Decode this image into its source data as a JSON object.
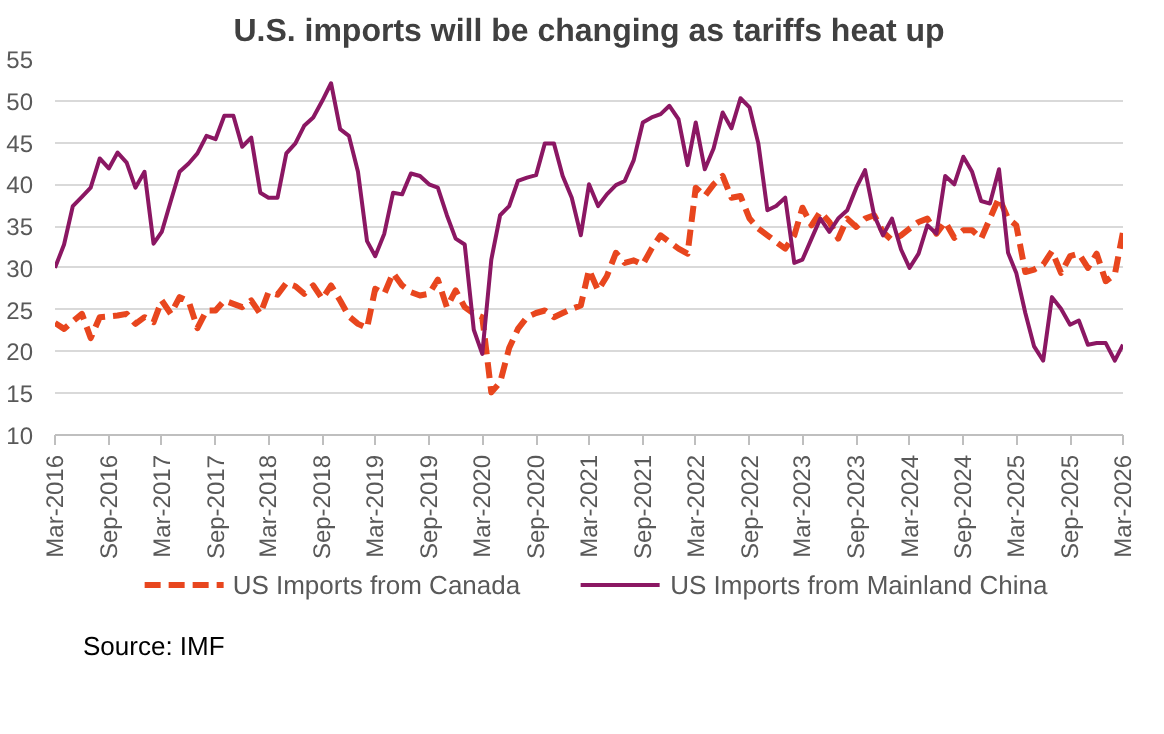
{
  "chart_data": {
    "type": "line",
    "title": "U.S. imports will be changing as tariffs heat up",
    "x": [
      "2016-03",
      "2016-04",
      "2016-05",
      "2016-06",
      "2016-07",
      "2016-08",
      "2016-09",
      "2016-10",
      "2016-11",
      "2016-12",
      "2017-01",
      "2017-02",
      "2017-03",
      "2017-04",
      "2017-05",
      "2017-06",
      "2017-07",
      "2017-08",
      "2017-09",
      "2017-10",
      "2017-11",
      "2017-12",
      "2018-01",
      "2018-02",
      "2018-03",
      "2018-04",
      "2018-05",
      "2018-06",
      "2018-07",
      "2018-08",
      "2018-09",
      "2018-10",
      "2018-11",
      "2018-12",
      "2019-01",
      "2019-02",
      "2019-03",
      "2019-04",
      "2019-05",
      "2019-06",
      "2019-07",
      "2019-08",
      "2019-09",
      "2019-10",
      "2019-11",
      "2019-12",
      "2020-01",
      "2020-02",
      "2020-03",
      "2020-04",
      "2020-05",
      "2020-06",
      "2020-07",
      "2020-08",
      "2020-09",
      "2020-10",
      "2020-11",
      "2020-12",
      "2021-01",
      "2021-02",
      "2021-03",
      "2021-04",
      "2021-05",
      "2021-06",
      "2021-07",
      "2021-08",
      "2021-09",
      "2021-10",
      "2021-11",
      "2021-12",
      "2022-01",
      "2022-02",
      "2022-03",
      "2022-04",
      "2022-05",
      "2022-06",
      "2022-07",
      "2022-08",
      "2022-09",
      "2022-10",
      "2022-11",
      "2022-12",
      "2023-01",
      "2023-02",
      "2023-03",
      "2023-04",
      "2023-05",
      "2023-06",
      "2023-07",
      "2023-08",
      "2023-09",
      "2023-10",
      "2023-11",
      "2023-12",
      "2024-01",
      "2024-02",
      "2024-03",
      "2024-04",
      "2024-05",
      "2024-06",
      "2024-07",
      "2024-08",
      "2024-09",
      "2024-10",
      "2024-11",
      "2024-12",
      "2025-01",
      "2025-02",
      "2025-03",
      "2025-04",
      "2025-05",
      "2025-06",
      "2025-07",
      "2025-08",
      "2025-09",
      "2025-10",
      "2025-11",
      "2025-12",
      "2026-01",
      "2026-02",
      "2026-03"
    ],
    "series": [
      {
        "name": "US Imports from Canada",
        "color": "#e8461e",
        "line_style": "dashed",
        "values": [
          23.4,
          22.7,
          23.6,
          24.5,
          21.6,
          24.1,
          24.2,
          24.3,
          24.5,
          23.3,
          24.1,
          23.5,
          26.1,
          24.5,
          26.5,
          26.0,
          22.8,
          24.9,
          24.9,
          26.1,
          25.7,
          25.3,
          26.1,
          24.5,
          27.1,
          26.8,
          28.2,
          27.8,
          26.9,
          27.9,
          26.3,
          27.9,
          26.1,
          24.2,
          23.3,
          22.8,
          27.5,
          26.9,
          29.4,
          27.9,
          27.1,
          26.7,
          26.9,
          28.6,
          25.3,
          27.3,
          25.3,
          24.5,
          24.1,
          15.1,
          16.3,
          20.4,
          22.7,
          24.1,
          24.6,
          24.9,
          24.1,
          24.6,
          25.1,
          25.5,
          29.8,
          27.3,
          29.0,
          31.8,
          30.6,
          30.9,
          30.4,
          32.3,
          33.9,
          33.1,
          32.3,
          31.7,
          39.6,
          38.6,
          40.0,
          41.0,
          38.4,
          38.6,
          35.9,
          34.7,
          33.9,
          33.1,
          32.3,
          33.9,
          37.2,
          35.1,
          36.7,
          35.5,
          33.5,
          35.9,
          34.9,
          35.9,
          36.3,
          34.3,
          33.3,
          33.9,
          34.7,
          35.5,
          35.9,
          34.1,
          35.5,
          33.6,
          34.5,
          34.5,
          33.5,
          35.9,
          38.4,
          35.9,
          35.1,
          29.5,
          29.8,
          30.4,
          32.0,
          29.4,
          31.4,
          31.7,
          30.0,
          31.7,
          28.4,
          29.2,
          34.3
        ]
      },
      {
        "name": "US Imports from Mainland China",
        "color": "#8b1763",
        "line_style": "solid",
        "values": [
          30.0,
          32.8,
          37.4,
          38.5,
          39.6,
          43.1,
          41.9,
          43.8,
          42.6,
          39.6,
          41.5,
          32.9,
          34.3,
          38.0,
          41.5,
          42.5,
          43.7,
          45.8,
          45.4,
          48.2,
          48.2,
          44.5,
          45.6,
          39.0,
          38.4,
          38.4,
          43.7,
          44.9,
          47.0,
          48.0,
          50.0,
          52.1,
          46.6,
          45.8,
          41.5,
          33.2,
          31.4,
          34.1,
          39.0,
          38.8,
          41.3,
          41.0,
          40.0,
          39.6,
          36.3,
          33.5,
          32.8,
          22.6,
          19.7,
          31.0,
          36.3,
          37.4,
          40.4,
          40.8,
          41.1,
          44.9,
          44.9,
          41.0,
          38.4,
          33.9,
          40.0,
          37.4,
          38.8,
          39.9,
          40.4,
          42.9,
          47.4,
          48.0,
          48.4,
          49.4,
          47.8,
          42.3,
          47.4,
          41.8,
          44.3,
          48.6,
          46.7,
          50.3,
          49.2,
          44.9,
          36.9,
          37.4,
          38.4,
          30.6,
          31.0,
          33.5,
          35.9,
          34.3,
          35.9,
          36.9,
          39.6,
          41.7,
          36.3,
          33.9,
          35.9,
          32.2,
          30.0,
          31.7,
          35.1,
          34.1,
          41.0,
          40.0,
          43.3,
          41.5,
          38.0,
          37.7,
          41.8,
          31.8,
          29.4,
          24.6,
          20.6,
          18.9,
          26.5,
          25.1,
          23.2,
          23.7,
          20.8,
          21.0,
          21.0,
          18.9,
          20.8
        ]
      }
    ],
    "xlim": [
      "2016-03",
      "2026-03"
    ],
    "xticks": [
      {
        "value": "2016-03",
        "label": "Mar-2016"
      },
      {
        "value": "2016-09",
        "label": "Sep-2016"
      },
      {
        "value": "2017-03",
        "label": "Mar-2017"
      },
      {
        "value": "2017-09",
        "label": "Sep-2017"
      },
      {
        "value": "2018-03",
        "label": "Mar-2018"
      },
      {
        "value": "2018-09",
        "label": "Sep-2018"
      },
      {
        "value": "2019-03",
        "label": "Mar-2019"
      },
      {
        "value": "2019-09",
        "label": "Sep-2019"
      },
      {
        "value": "2020-03",
        "label": "Mar-2020"
      },
      {
        "value": "2020-09",
        "label": "Sep-2020"
      },
      {
        "value": "2021-03",
        "label": "Mar-2021"
      },
      {
        "value": "2021-09",
        "label": "Sep-2021"
      },
      {
        "value": "2022-03",
        "label": "Mar-2022"
      },
      {
        "value": "2022-09",
        "label": "Sep-2022"
      },
      {
        "value": "2023-03",
        "label": "Mar-2023"
      },
      {
        "value": "2023-09",
        "label": "Sep-2023"
      },
      {
        "value": "2024-03",
        "label": "Mar-2024"
      },
      {
        "value": "2024-09",
        "label": "Sep-2024"
      },
      {
        "value": "2025-03",
        "label": "Mar-2025"
      },
      {
        "value": "2025-09",
        "label": "Sep-2025"
      },
      {
        "value": "2026-03",
        "label": "Mar-2026"
      }
    ],
    "ylim": [
      10,
      55
    ],
    "yticks": [
      10,
      15,
      20,
      25,
      30,
      35,
      40,
      45,
      50,
      55
    ],
    "grid": "y",
    "legend": "bottom",
    "marker": "none",
    "annotations": [
      "Source: IMF"
    ]
  }
}
